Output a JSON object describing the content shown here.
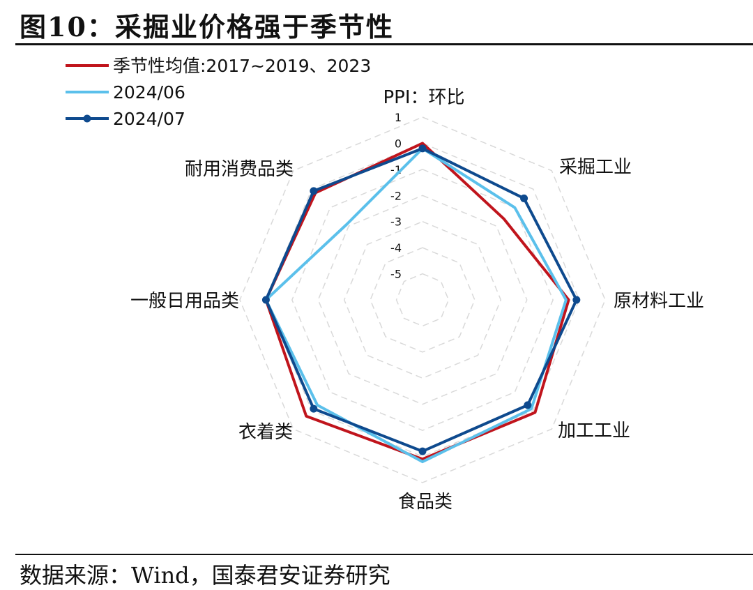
{
  "figure": {
    "title": "图10：采掘业价格强于季节性",
    "source": "数据来源：Wind，国泰君安证券研究"
  },
  "chart_data": {
    "type": "radar",
    "title": "PPI：环比",
    "categories": [
      "PPI：环比",
      "采掘工业",
      "原材料工业",
      "加工工业",
      "食品类",
      "衣着类",
      "一般日用品类",
      "耐用消费品类"
    ],
    "radial_ticks": [
      1,
      0,
      -1,
      -2,
      -3,
      -4,
      -5
    ],
    "rlim": [
      -6,
      1
    ],
    "grid": true,
    "legend_position": "top-left",
    "series": [
      {
        "name": "季节性均值:2017~2019、2023",
        "color": "#c0141c",
        "marker": false,
        "values": [
          0.0,
          -1.6,
          -0.4,
          0.1,
          0.1,
          0.3,
          0.0,
          -0.2
        ]
      },
      {
        "name": "2024/06",
        "color": "#5bc0eb",
        "marker": false,
        "values": [
          -0.2,
          -1.0,
          -0.5,
          -0.1,
          0.2,
          -0.3,
          0.0,
          -1.9
        ]
      },
      {
        "name": "2024/07",
        "color": "#0e4a8e",
        "marker": true,
        "values": [
          -0.2,
          -0.5,
          -0.1,
          -0.3,
          -0.2,
          -0.1,
          0.0,
          -0.1
        ]
      }
    ]
  }
}
